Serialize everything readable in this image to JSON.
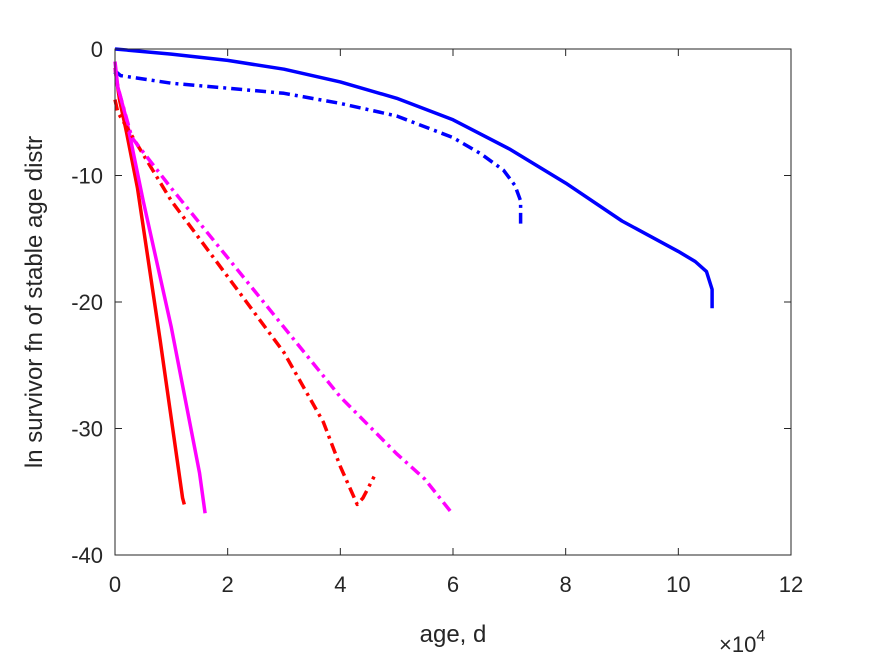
{
  "chart_data": {
    "type": "line",
    "xlabel": "age, d",
    "ylabel": "ln survivor fn of stable age distr",
    "x_multiplier": {
      "base": "×10",
      "exponent": "4"
    },
    "xlim": [
      0,
      120000
    ],
    "ylim": [
      -40,
      0
    ],
    "xticks": [
      0,
      20000,
      40000,
      60000,
      80000,
      100000,
      120000
    ],
    "xtick_labels": [
      "0",
      "2",
      "4",
      "6",
      "8",
      "10",
      "12"
    ],
    "yticks": [
      0,
      -10,
      -20,
      -30,
      -40
    ],
    "ytick_labels": [
      "0",
      "-10",
      "-20",
      "-30",
      "-40"
    ],
    "grid": false,
    "series": [
      {
        "color": "#0000ff",
        "style": "solid",
        "x": [
          0,
          10000,
          20000,
          30000,
          40000,
          50000,
          60000,
          70000,
          80000,
          90000,
          100000,
          103000,
          105000,
          106000,
          106000
        ],
        "y": [
          0,
          -0.4,
          -0.9,
          -1.6,
          -2.6,
          -3.9,
          -5.6,
          -7.9,
          -10.6,
          -13.6,
          -16.0,
          -16.8,
          -17.6,
          -19.0,
          -20.5
        ]
      },
      {
        "color": "#0000ff",
        "style": "dashdot",
        "x": [
          0,
          200,
          1000,
          10000,
          20000,
          30000,
          40000,
          50000,
          60000,
          65000,
          69000,
          71000,
          72000,
          72000
        ],
        "y": [
          -2.0,
          -1.8,
          -2.1,
          -2.7,
          -3.1,
          -3.5,
          -4.3,
          -5.3,
          -7.0,
          -8.3,
          -9.6,
          -10.8,
          -12.0,
          -13.8
        ]
      },
      {
        "color": "#ff0000",
        "style": "solid",
        "x": [
          0,
          800,
          2000,
          4000,
          8000,
          12000,
          12300
        ],
        "y": [
          -1.5,
          -4.0,
          -6.5,
          -11.0,
          -23.0,
          -35.5,
          -36.0
        ]
      },
      {
        "color": "#ff00ff",
        "style": "solid",
        "x": [
          0,
          500,
          2000,
          5000,
          10000,
          15000,
          16000
        ],
        "y": [
          -1.0,
          -3.0,
          -5.5,
          -12.0,
          -22.0,
          -33.5,
          -36.7
        ]
      },
      {
        "color": "#ff0000",
        "style": "dashdot",
        "x": [
          0,
          500,
          2500,
          10000,
          20000,
          30000,
          37000,
          40000,
          43000,
          44000,
          46000
        ],
        "y": [
          -4.0,
          -5.0,
          -6.5,
          -12.0,
          -18.0,
          -24.0,
          -29.5,
          -33.0,
          -36.0,
          -35.5,
          -33.8
        ]
      },
      {
        "color": "#ff00ff",
        "style": "dashdot",
        "x": [
          0,
          500,
          3000,
          10000,
          20000,
          30000,
          40000,
          50000,
          55000,
          60000
        ],
        "y": [
          -1.5,
          -3.0,
          -7.0,
          -11.0,
          -16.5,
          -22.0,
          -27.5,
          -32.0,
          -34.0,
          -36.8
        ]
      }
    ]
  }
}
